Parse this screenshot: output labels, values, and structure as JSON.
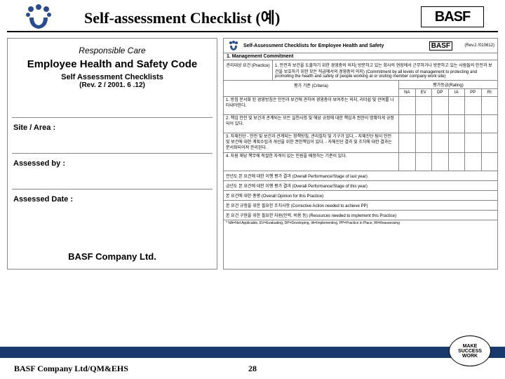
{
  "header": {
    "title": "Self-assessment Checklist (예)",
    "brand": "BASF"
  },
  "left": {
    "rc": "Responsible Care",
    "codeTitle": "Employee Health and Safety Code",
    "sac": "Self Assessment Checklists",
    "rev": "(Rev. 2 / 2001. 6 .12)",
    "fields": [
      "Site / Area :",
      "Assessed by :",
      "Assessed Date :"
    ],
    "company": "BASF Company Ltd."
  },
  "right": {
    "docTitle": "Self-Assessment Checklists for Employee Health and Safety",
    "docRev": "(Rev.2 /010612)",
    "sectionHead": "1. Management Commitment",
    "practiceLabel": "관리대상 요건\n(Practice)",
    "practiceText": "1. 안전과 보건을 도출하기 위한 경영층의 의지( 방문하고 있는 회사의 현장에서 근무하거나 방문하고 있는 사람들의 안전과 보건을 보호하기 위한 모든 직급에서의 경영층의 의지)\n(Commitment by all levels of management to protecting and promoting the health and safety of people working at or visiting member company work site)",
    "criteriaLabel": "평가 기준\n(Criteria)",
    "ratingLabel": "평가등급(Rating)",
    "ratingCols": [
      "NA",
      "EV",
      "DP",
      "IA",
      "PP",
      "RI"
    ],
    "criteria": [
      "1. 방침\n문서화 된 경영방침은 안전과 보건에 관하여 경영층이 보여주는 의지, 리더쉽 및 관여를 나타내야한다.",
      "2. 책임\n안전 및 보건과 관계되는 모든 실천사항 및 해당 규정에 대한 책임과 권한이 명확하게 규정되어 있다.",
      "3. 자체진단\n- 안전 및 보건과 관계되는 정책방침, 관리절차 및 기구가 있다.\n- 자체진단 팀이 안전 및 보건에 대한 계획수립과 개선을 위한 권한책임이 있다.\n- 자체진단 결과 및 조치에 대한 결과는 문서화되어져 관리된다.",
      "4. 자원\n해당 책무에 적절한 자격이 있는 인원을 배정하는 기준이 있다."
    ],
    "perf": [
      "전년도 본 요건에 대한 이행 평가 결과\n(Overall Performance/Stage of last year)",
      "금년도 본 요건에 대한 이행 평가 결과\n(Overall Performance/Stage of this year)",
      "본 요건에 대한 총평\n(Overall Opinion for this Practice)",
      "본 요건 규정을 위한 필요한 조치사항\n(Corrective Action needed to achieve PP)",
      "본 요건 구현을 위한 필요한 자원(인력, 비용 등)\n(Resources needed to implement this Practice)"
    ],
    "note": "* NA=Not Applicable, EV=Evaluating, DP=Developing, IA=Implementing, PP=Practice in Place, RI=Reassessing"
  },
  "footer": {
    "left": "BASF Company Ltd/QM&EHS",
    "page": "28",
    "badge": [
      "MAKE",
      "SUCCESS",
      "WORK"
    ]
  },
  "colors": {
    "barBlue": "#1a3a6e"
  }
}
